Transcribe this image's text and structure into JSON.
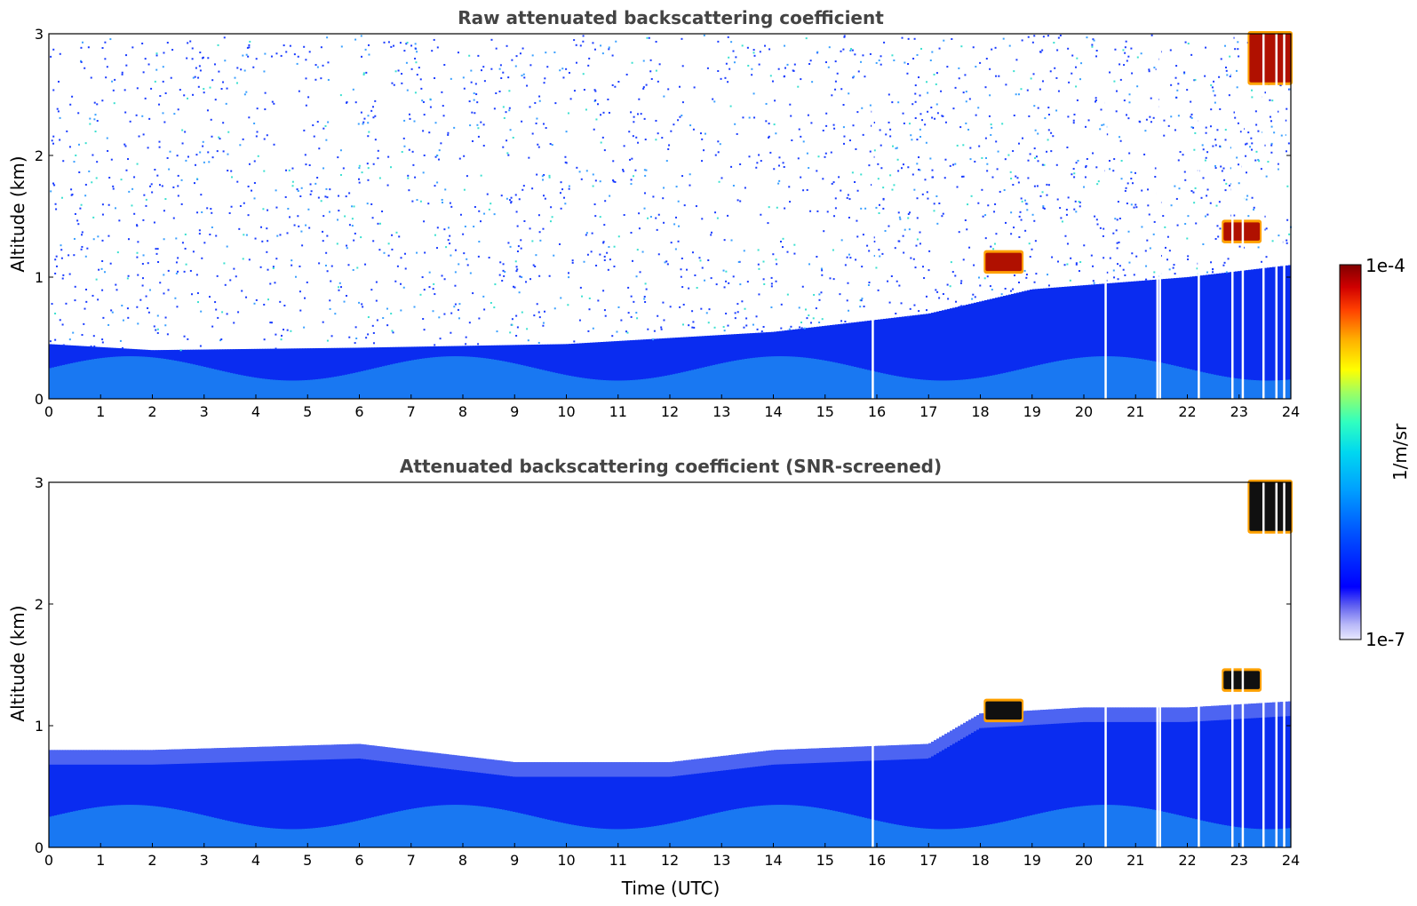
{
  "chart_data": [
    {
      "type": "heatmap",
      "title": "Raw attenuated backscattering coefficient",
      "xlabel": "",
      "ylabel": "Altitude (km)",
      "xlim": [
        0,
        24
      ],
      "ylim": [
        0,
        3
      ],
      "x_ticks": [
        "0",
        "1",
        "2",
        "3",
        "4",
        "5",
        "6",
        "7",
        "8",
        "9",
        "10",
        "11",
        "12",
        "13",
        "14",
        "15",
        "16",
        "17",
        "18",
        "19",
        "20",
        "21",
        "22",
        "23",
        "24"
      ],
      "y_ticks": [
        "0",
        "1",
        "2",
        "3"
      ],
      "grid": false,
      "noise": "dense speckle throughout entire altitude range",
      "boundary_layer_top_km": [
        {
          "x": 0,
          "y": 0.45
        },
        {
          "x": 2,
          "y": 0.4
        },
        {
          "x": 6,
          "y": 0.42
        },
        {
          "x": 10,
          "y": 0.45
        },
        {
          "x": 14,
          "y": 0.55
        },
        {
          "x": 17,
          "y": 0.7
        },
        {
          "x": 19,
          "y": 0.9
        },
        {
          "x": 22,
          "y": 1.0
        },
        {
          "x": 24,
          "y": 1.1
        }
      ],
      "features": [
        {
          "name": "cloud",
          "time": [
            18.1,
            18.8
          ],
          "altitude_km": [
            1.05,
            1.2
          ],
          "intensity": "high"
        },
        {
          "name": "cloud",
          "time": [
            22.7,
            23.4
          ],
          "altitude_km": [
            1.3,
            1.45
          ],
          "intensity": "high"
        },
        {
          "name": "cloud",
          "time": [
            23.2,
            24.0
          ],
          "altitude_km": [
            2.6,
            3.0
          ],
          "intensity": "high"
        }
      ],
      "missing_data_times": [
        15.9,
        20.4,
        21.4,
        21.45,
        22.2,
        22.85,
        23.05,
        23.45,
        23.7,
        23.85
      ]
    },
    {
      "type": "heatmap",
      "title": "Attenuated backscattering coefficient (SNR-screened)",
      "xlabel": "Time (UTC)",
      "ylabel": "Altitude (km)",
      "xlim": [
        0,
        24
      ],
      "ylim": [
        0,
        3
      ],
      "x_ticks": [
        "0",
        "1",
        "2",
        "3",
        "4",
        "5",
        "6",
        "7",
        "8",
        "9",
        "10",
        "11",
        "12",
        "13",
        "14",
        "15",
        "16",
        "17",
        "18",
        "19",
        "20",
        "21",
        "22",
        "23",
        "24"
      ],
      "y_ticks": [
        "0",
        "1",
        "2",
        "3"
      ],
      "grid": false,
      "noise": "screened out above boundary layer",
      "boundary_layer_top_km": [
        {
          "x": 0,
          "y": 0.8
        },
        {
          "x": 2,
          "y": 0.8
        },
        {
          "x": 6,
          "y": 0.85
        },
        {
          "x": 9,
          "y": 0.7
        },
        {
          "x": 12,
          "y": 0.7
        },
        {
          "x": 14,
          "y": 0.8
        },
        {
          "x": 17,
          "y": 0.85
        },
        {
          "x": 18,
          "y": 1.1
        },
        {
          "x": 20,
          "y": 1.15
        },
        {
          "x": 22,
          "y": 1.15
        },
        {
          "x": 24,
          "y": 1.2
        }
      ],
      "features": [
        {
          "name": "cloud",
          "time": [
            18.1,
            18.8
          ],
          "altitude_km": [
            1.05,
            1.2
          ],
          "intensity": "saturated"
        },
        {
          "name": "cloud",
          "time": [
            22.7,
            23.4
          ],
          "altitude_km": [
            1.3,
            1.45
          ],
          "intensity": "saturated"
        },
        {
          "name": "cloud",
          "time": [
            23.2,
            24.0
          ],
          "altitude_km": [
            2.6,
            3.0
          ],
          "intensity": "saturated"
        }
      ],
      "missing_data_times": [
        15.9,
        20.4,
        21.4,
        21.45,
        22.2,
        22.85,
        23.05,
        23.45,
        23.7,
        23.85
      ]
    }
  ],
  "colorbar": {
    "max_label": "1e-4",
    "min_label": "1e-7",
    "label": "1/m/sr",
    "colors": [
      "#e8e8ff",
      "#b8b8f8",
      "#8080f0",
      "#0000ff",
      "#0040ff",
      "#0080ff",
      "#00b0ff",
      "#00e0e0",
      "#40ffb0",
      "#a0ff60",
      "#ffff00",
      "#ffb000",
      "#ff5000",
      "#e00000",
      "#800000"
    ]
  }
}
